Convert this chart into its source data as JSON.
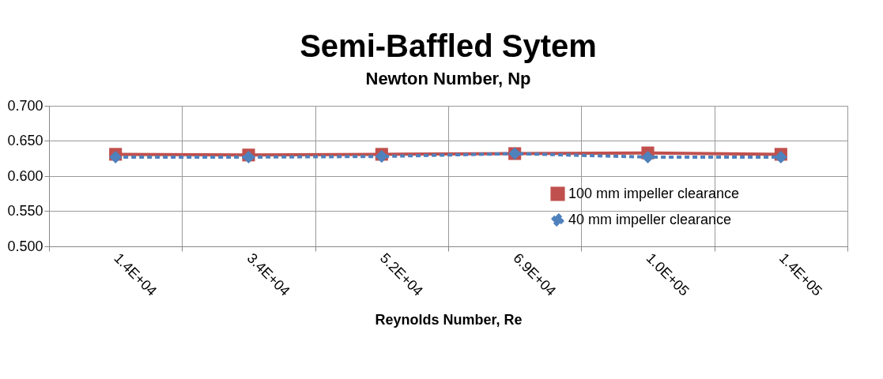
{
  "chart_data": {
    "type": "line",
    "title": "Semi-Baffled Sytem",
    "subtitle": "Newton Number, Np",
    "xlabel": "Reynolds Number, Re",
    "categories": [
      "1.4E+04",
      "3.4E+04",
      "5.2E+04",
      "6.9E+04",
      "1.0E+05",
      "1.4E+05"
    ],
    "series": [
      {
        "name": "100 mm impeller clearance",
        "color": "#c0504d",
        "marker": "square",
        "line_style": "solid",
        "values": [
          0.631,
          0.63,
          0.631,
          0.632,
          0.633,
          0.631
        ]
      },
      {
        "name": "40 mm impeller clearance",
        "color": "#4f81bd",
        "marker": "diamond",
        "line_style": "dashed",
        "values": [
          0.627,
          0.627,
          0.628,
          0.632,
          0.627,
          0.627
        ]
      }
    ],
    "ylim": [
      0.5,
      0.7
    ],
    "yticks": [
      {
        "value": 0.5,
        "label": "0.500"
      },
      {
        "value": 0.55,
        "label": "0.550"
      },
      {
        "value": 0.6,
        "label": "0.600"
      },
      {
        "value": 0.65,
        "label": "0.650"
      },
      {
        "value": 0.7,
        "label": "0.700"
      }
    ],
    "grid": true,
    "legend": "right"
  }
}
